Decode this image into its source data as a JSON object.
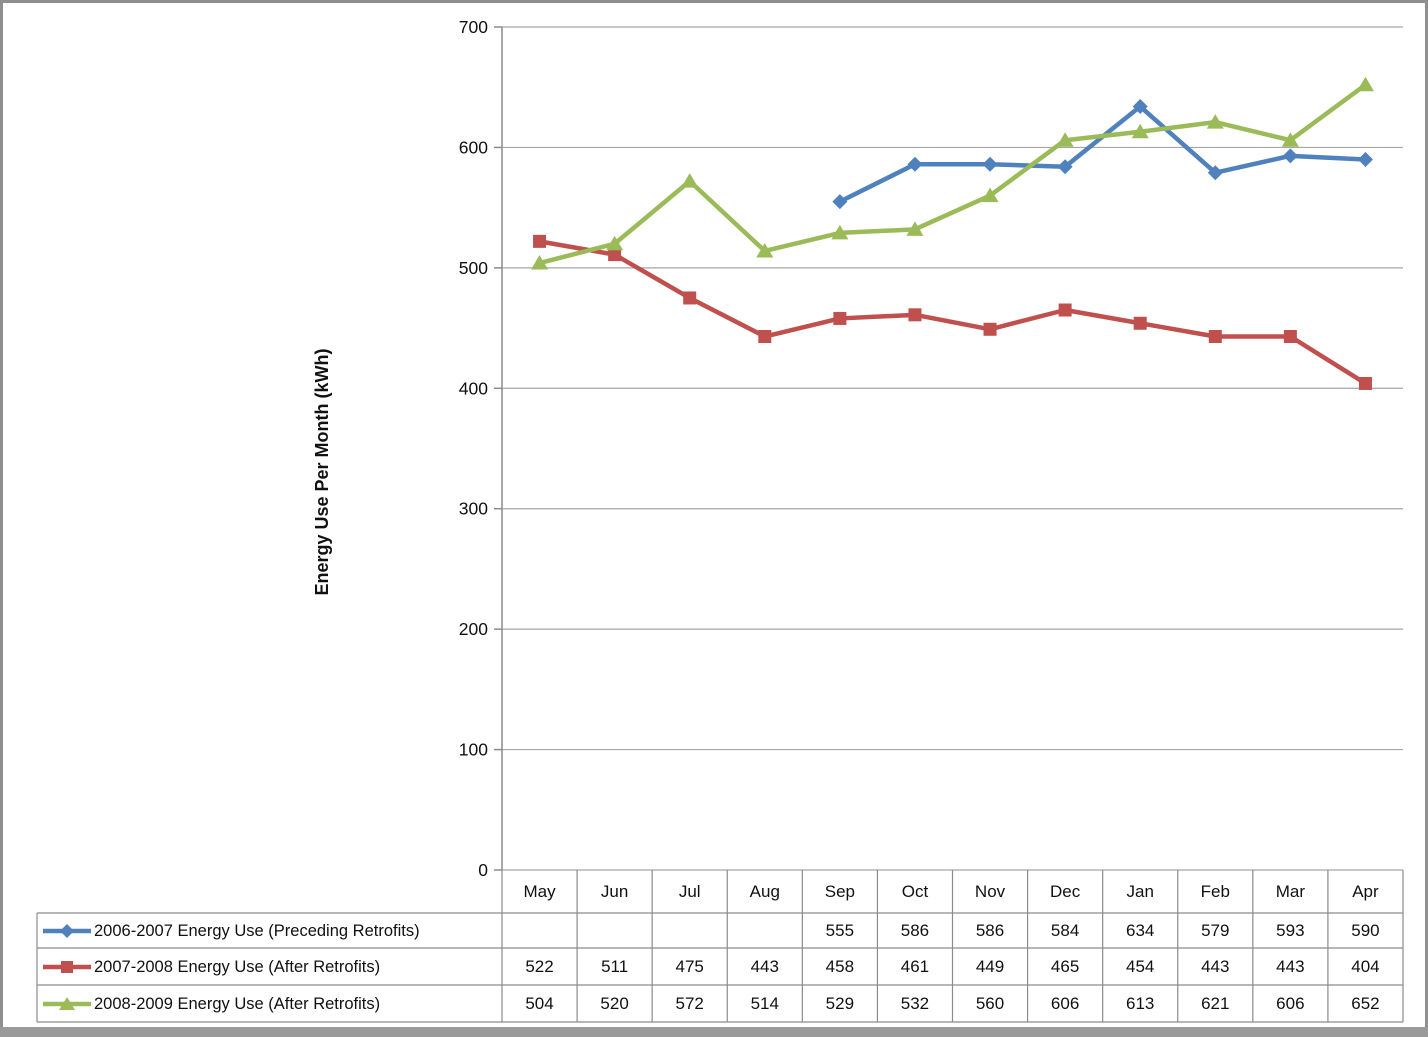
{
  "frame": {
    "background": "#ffffff",
    "border_color": "#8f8f8f",
    "bottom_band_color": "#9a9a9a"
  },
  "chart_data": {
    "type": "line",
    "title": "",
    "xlabel": "",
    "ylabel": "Energy Use Per Month (kWh)",
    "ylim": [
      0,
      700
    ],
    "yticks": [
      0,
      100,
      200,
      300,
      400,
      500,
      600,
      700
    ],
    "grid": true,
    "legend_position": "data-table-left",
    "gridline_color": "#a6a6a6",
    "axis_color": "#8c8c8c",
    "table_border_color": "#8c8c8c",
    "text_color": "#111111",
    "categories": [
      "May",
      "Jun",
      "Jul",
      "Aug",
      "Sep",
      "Oct",
      "Nov",
      "Dec",
      "Jan",
      "Feb",
      "Mar",
      "Apr"
    ],
    "series": [
      {
        "name": "2006-2007 Energy Use (Preceding Retrofits)",
        "color": "#4f81bd",
        "marker": "diamond",
        "values": [
          null,
          null,
          null,
          null,
          555,
          586,
          586,
          584,
          634,
          579,
          593,
          590
        ]
      },
      {
        "name": "2007-2008 Energy Use (After Retrofits)",
        "color": "#c0504d",
        "marker": "square",
        "values": [
          522,
          511,
          475,
          443,
          458,
          461,
          449,
          465,
          454,
          443,
          443,
          404
        ]
      },
      {
        "name": "2008-2009 Energy Use (After Retrofits)",
        "color": "#9bbb59",
        "marker": "triangle",
        "values": [
          504,
          520,
          572,
          514,
          529,
          532,
          560,
          606,
          613,
          621,
          606,
          652
        ]
      }
    ]
  }
}
